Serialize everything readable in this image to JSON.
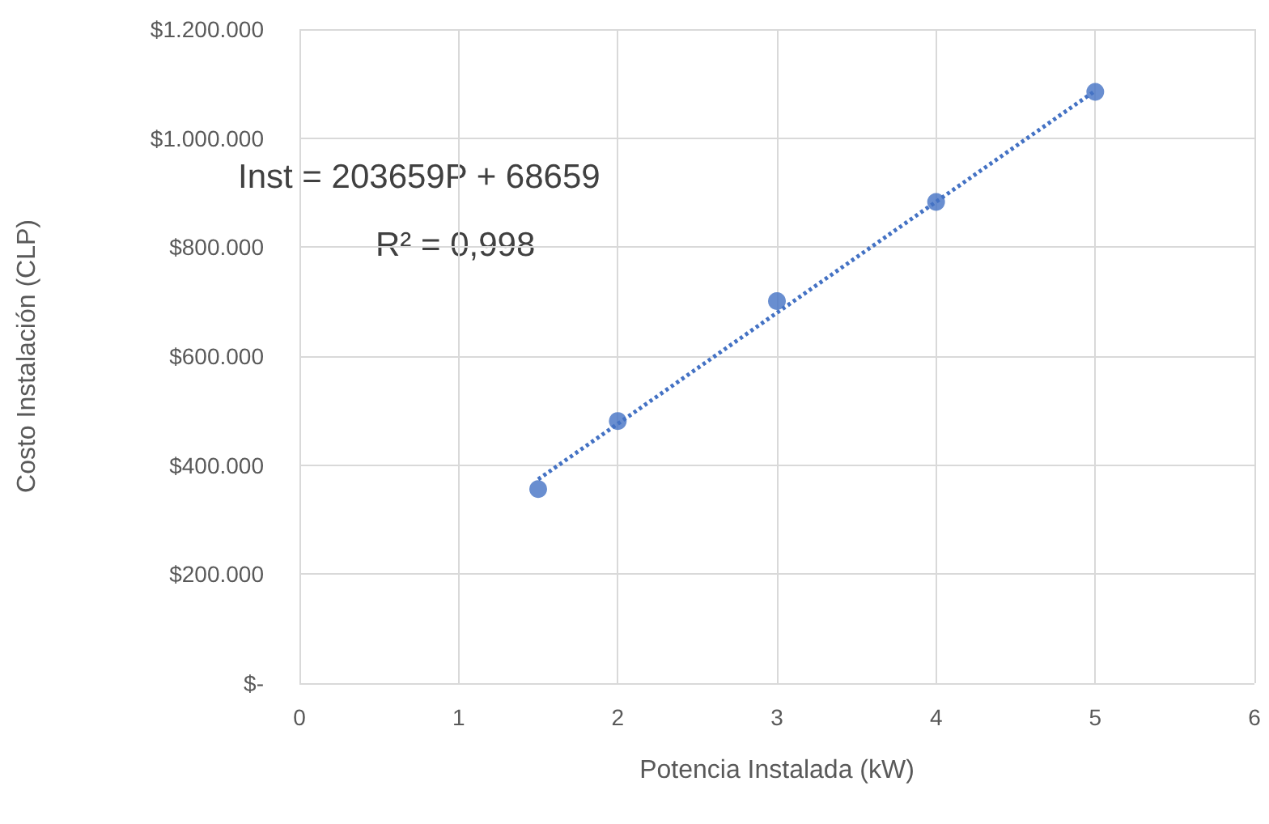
{
  "chart_data": {
    "type": "scatter",
    "xlabel": "Potencia Instalada (kW)",
    "ylabel": "Costo Instalación (CLP)",
    "annotations": [
      "Inst = 203659P + 68659",
      "R² = 0,998"
    ],
    "series": [
      {
        "color": "#4472c4",
        "marker": "circle",
        "x": [
          1.5,
          2,
          3,
          4,
          5
        ],
        "values": [
          356000,
          481000,
          701000,
          883000,
          1085000
        ]
      },
      {
        "type": "line",
        "color": "#4472c4",
        "marker": "none",
        "line_style": "dotted",
        "x": [
          1.5,
          5
        ],
        "values": [
          374000,
          1087000
        ]
      }
    ],
    "xlim": [
      0,
      6
    ],
    "xticks": [
      0,
      1,
      2,
      3,
      4,
      5,
      6
    ],
    "ylim": [
      0,
      1200000
    ],
    "yticks": [
      {
        "value": 0,
        "label": "$-"
      },
      {
        "value": 200000,
        "label": "$200.000"
      },
      {
        "value": 400000,
        "label": "$400.000"
      },
      {
        "value": 600000,
        "label": "$600.000"
      },
      {
        "value": 800000,
        "label": "$800.000"
      },
      {
        "value": 1000000,
        "label": "$1.000.000"
      },
      {
        "value": 1200000,
        "label": "$1.200.000"
      }
    ],
    "grid": true
  }
}
